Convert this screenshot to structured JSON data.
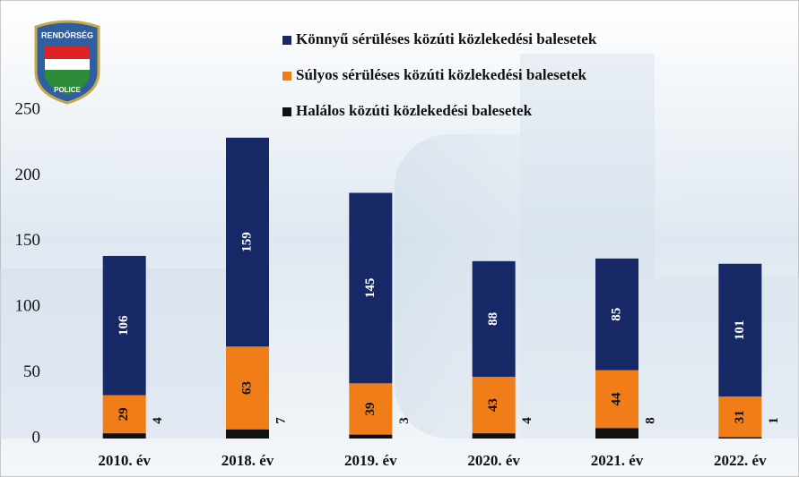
{
  "chart_data": {
    "type": "stacked_bar",
    "logo_text": [
      "RENDŐRSÉG",
      "POLICE"
    ],
    "categories": [
      "2010. év",
      "2018. év",
      "2019. év",
      "2020. év",
      "2021. év",
      "2022. év"
    ],
    "series": [
      {
        "name": "Halálos közúti közlekedési balesetek",
        "color": "#111111",
        "values": [
          4,
          7,
          3,
          4,
          8,
          1
        ]
      },
      {
        "name": "Súlyos sérüléses közúti közlekedési balesetek",
        "color": "#f07d18",
        "values": [
          29,
          63,
          39,
          43,
          44,
          31
        ]
      },
      {
        "name": "Könnyű sérüléses közúti közlekedési balesetek",
        "color": "#172866",
        "values": [
          106,
          159,
          145,
          88,
          85,
          101
        ]
      }
    ],
    "ylim": [
      0,
      250
    ],
    "yticks": [
      0,
      50,
      100,
      150,
      200,
      250
    ],
    "grid": false
  }
}
